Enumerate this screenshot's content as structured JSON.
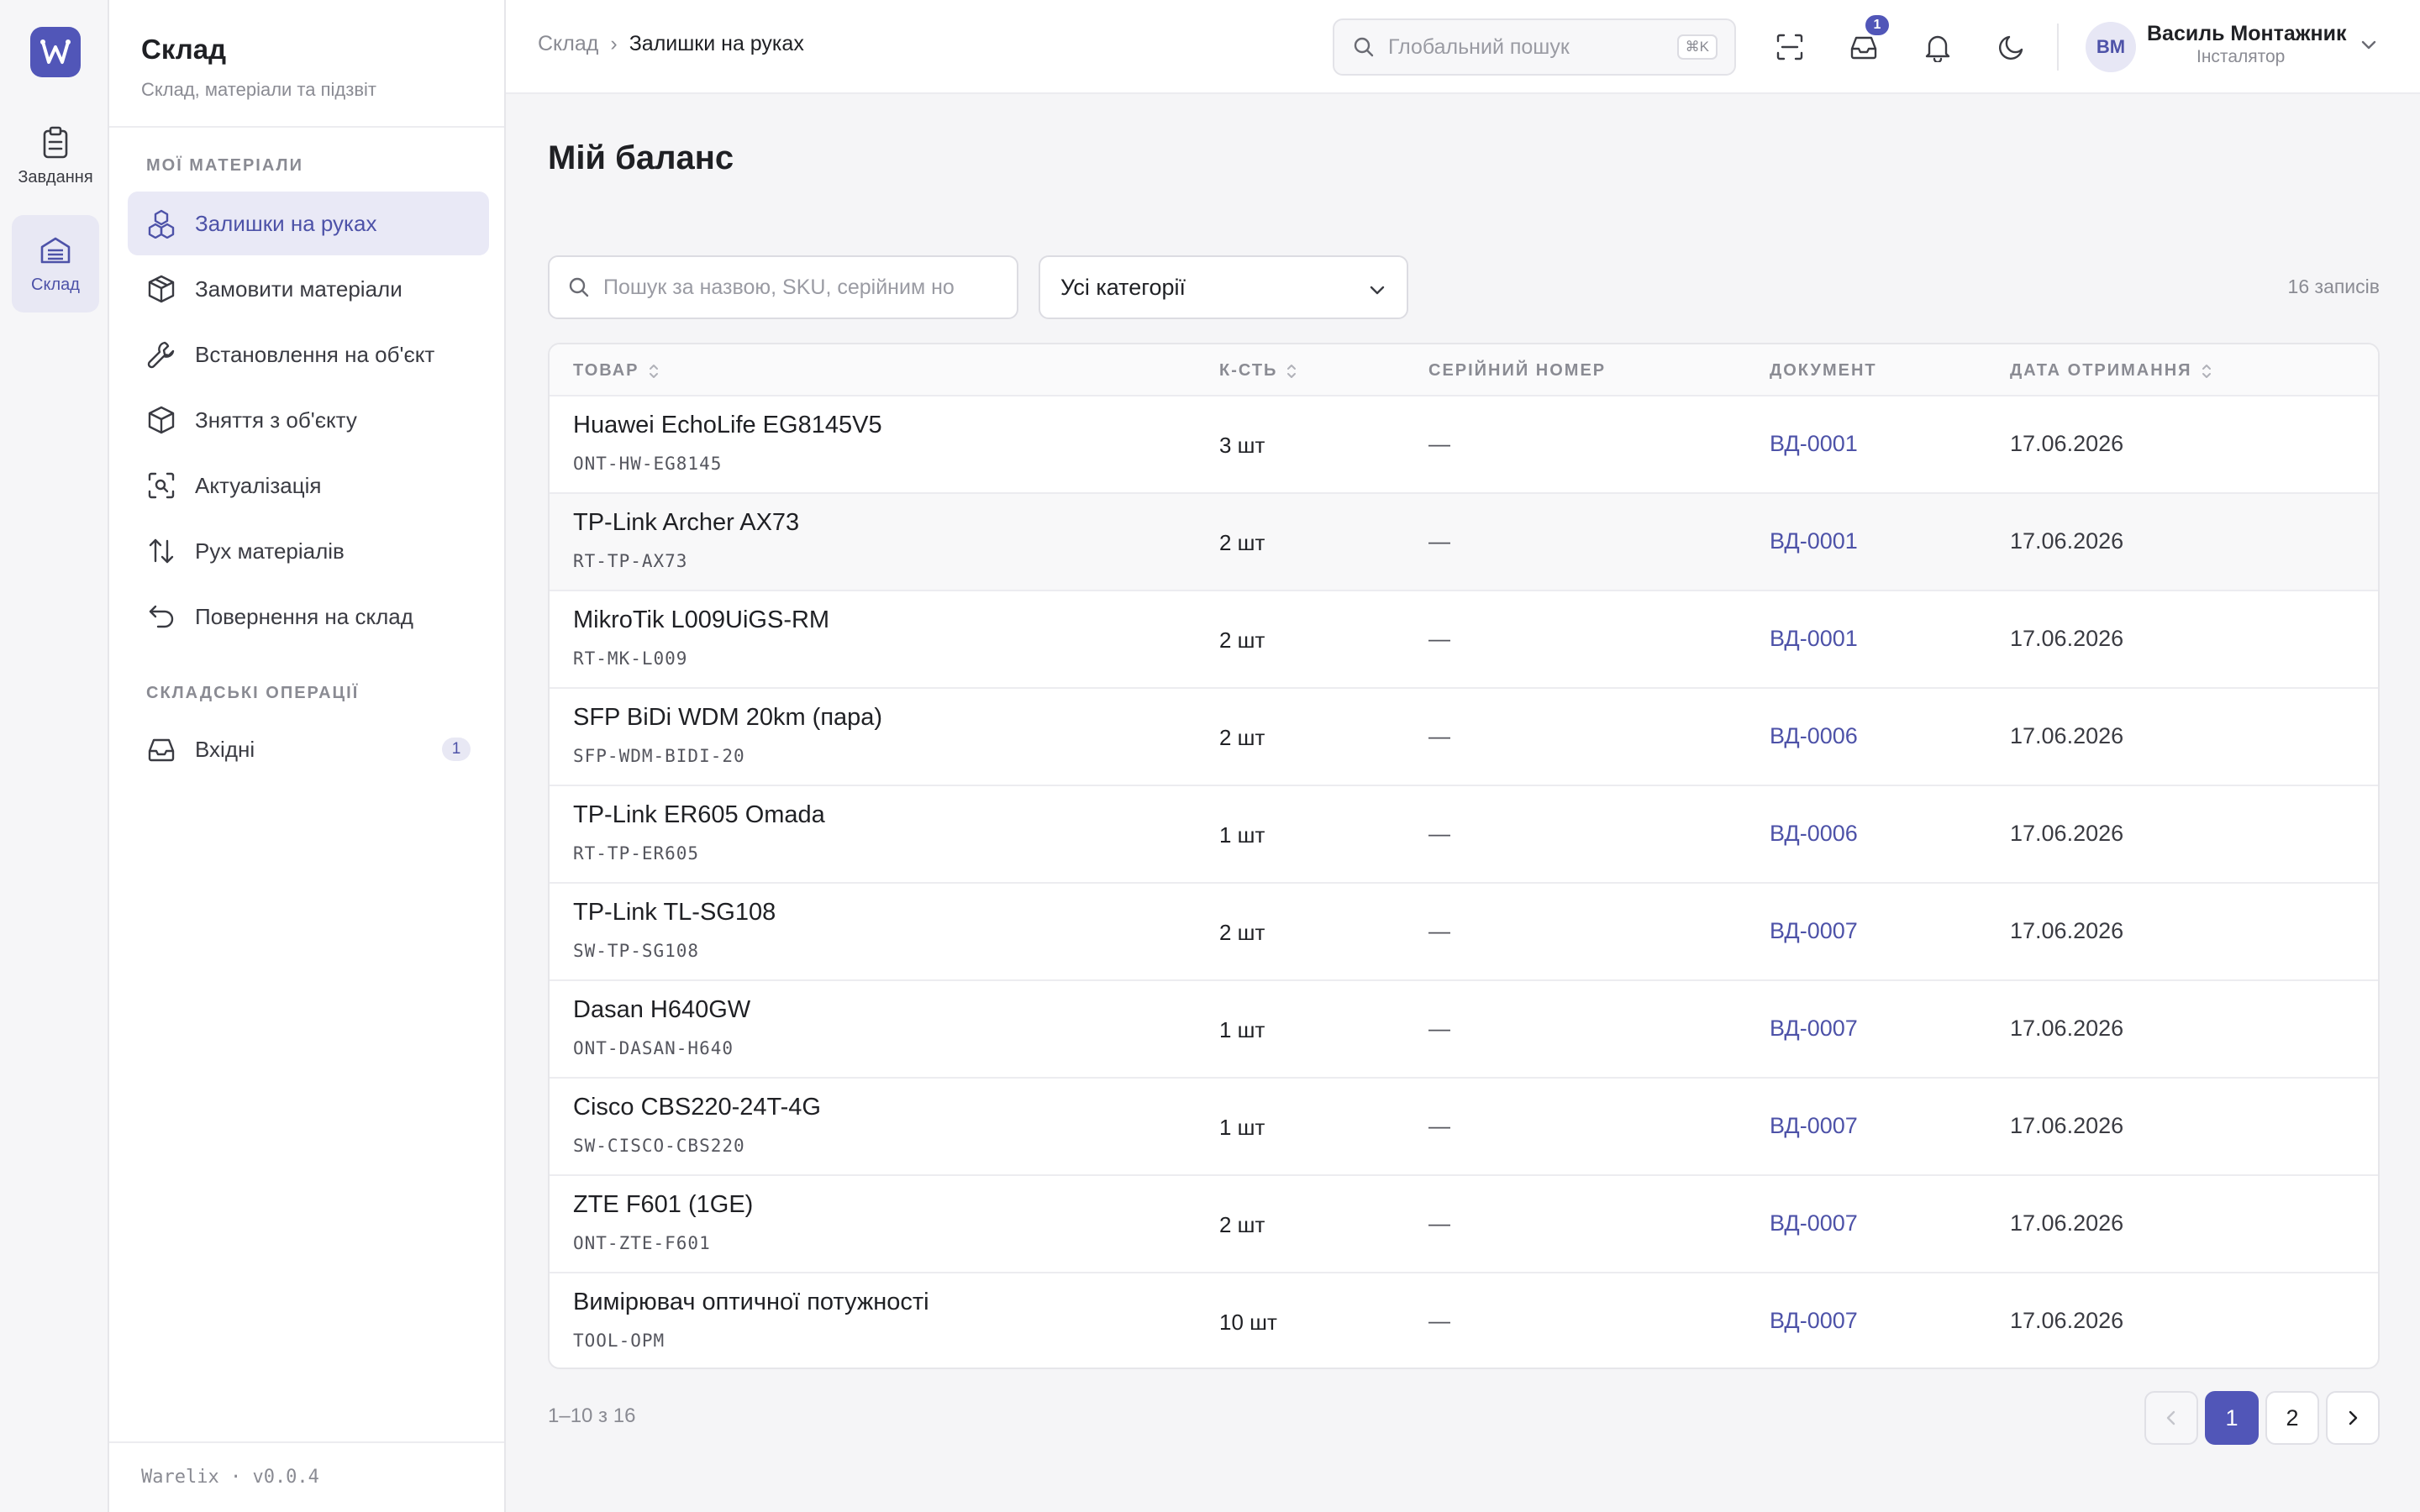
{
  "rail": {
    "items": [
      {
        "label": "Завдання",
        "icon": "clipboard-icon"
      },
      {
        "label": "Склад",
        "icon": "warehouse-icon"
      }
    ]
  },
  "nav": {
    "title": "Склад",
    "subtitle": "Склад, матеріали та підзвіт",
    "section1": "МОЇ МАТЕРІАЛИ",
    "items": [
      {
        "label": "Залишки на руках",
        "icon": "boxes-icon"
      },
      {
        "label": "Замовити матеріали",
        "icon": "package-plus-icon"
      },
      {
        "label": "Встановлення на об'єкт",
        "icon": "wrench-icon"
      },
      {
        "label": "Зняття з об'єкту",
        "icon": "package-minus-icon"
      },
      {
        "label": "Актуалізація",
        "icon": "scan-icon"
      },
      {
        "label": "Рух матеріалів",
        "icon": "arrows-up-down-icon"
      },
      {
        "label": "Повернення на склад",
        "icon": "undo-icon"
      }
    ],
    "section2": "СКЛАДСЬКІ ОПЕРАЦІЇ",
    "ops": [
      {
        "label": "Вхідні",
        "icon": "inbox-icon",
        "badge": "1"
      }
    ],
    "footer": "Warelix · v0.0.4"
  },
  "topbar": {
    "breadcrumb_parent": "Склад",
    "breadcrumb_sep": "›",
    "breadcrumb_current": "Залишки на руках",
    "search_placeholder": "Глобальний пошук",
    "search_shortcut": "⌘K",
    "inbox_badge": "1",
    "user_initials": "ВМ",
    "user_name": "Василь Монтажник",
    "user_role": "Інсталятор"
  },
  "main": {
    "title": "Мій баланс",
    "search_placeholder": "Пошук за назвою, SKU, серійним но",
    "category_selected": "Усі категорії",
    "records_count": "16 записів",
    "columns": [
      "ТОВАР",
      "К-СТЬ",
      "СЕРІЙНИЙ НОМЕР",
      "ДОКУМЕНТ",
      "ДАТА ОТРИМАННЯ"
    ],
    "rows": [
      {
        "name": "Huawei EchoLife EG8145V5",
        "sku": "ONT-HW-EG8145",
        "qty": "3 шт",
        "serial": "—",
        "doc": "ВД-0001",
        "date": "17.06.2026"
      },
      {
        "name": "TP-Link Archer AX73",
        "sku": "RT-TP-AX73",
        "qty": "2 шт",
        "serial": "—",
        "doc": "ВД-0001",
        "date": "17.06.2026"
      },
      {
        "name": "MikroTik L009UiGS-RM",
        "sku": "RT-MK-L009",
        "qty": "2 шт",
        "serial": "—",
        "doc": "ВД-0001",
        "date": "17.06.2026"
      },
      {
        "name": "SFP BiDi WDM 20km (пара)",
        "sku": "SFP-WDM-BIDI-20",
        "qty": "2 шт",
        "serial": "—",
        "doc": "ВД-0006",
        "date": "17.06.2026"
      },
      {
        "name": "TP-Link ER605 Omada",
        "sku": "RT-TP-ER605",
        "qty": "1 шт",
        "serial": "—",
        "doc": "ВД-0006",
        "date": "17.06.2026"
      },
      {
        "name": "TP-Link TL-SG108",
        "sku": "SW-TP-SG108",
        "qty": "2 шт",
        "serial": "—",
        "doc": "ВД-0007",
        "date": "17.06.2026"
      },
      {
        "name": "Dasan H640GW",
        "sku": "ONT-DASAN-H640",
        "qty": "1 шт",
        "serial": "—",
        "doc": "ВД-0007",
        "date": "17.06.2026"
      },
      {
        "name": "Cisco CBS220-24T-4G",
        "sku": "SW-CISCO-CBS220",
        "qty": "1 шт",
        "serial": "—",
        "doc": "ВД-0007",
        "date": "17.06.2026"
      },
      {
        "name": "ZTE F601 (1GE)",
        "sku": "ONT-ZTE-F601",
        "qty": "2 шт",
        "serial": "—",
        "doc": "ВД-0007",
        "date": "17.06.2026"
      },
      {
        "name": "Вимірювач оптичної потужності",
        "sku": "TOOL-OPM",
        "qty": "10 шт",
        "serial": "—",
        "doc": "ВД-0007",
        "date": "17.06.2026"
      }
    ],
    "pager_info": "1–10 з 16",
    "pages": [
      "1",
      "2"
    ],
    "current_page": "1"
  },
  "colors": {
    "accent": "#5156b8",
    "link": "#4d52a8",
    "active_bg": "#e9e9f6"
  }
}
